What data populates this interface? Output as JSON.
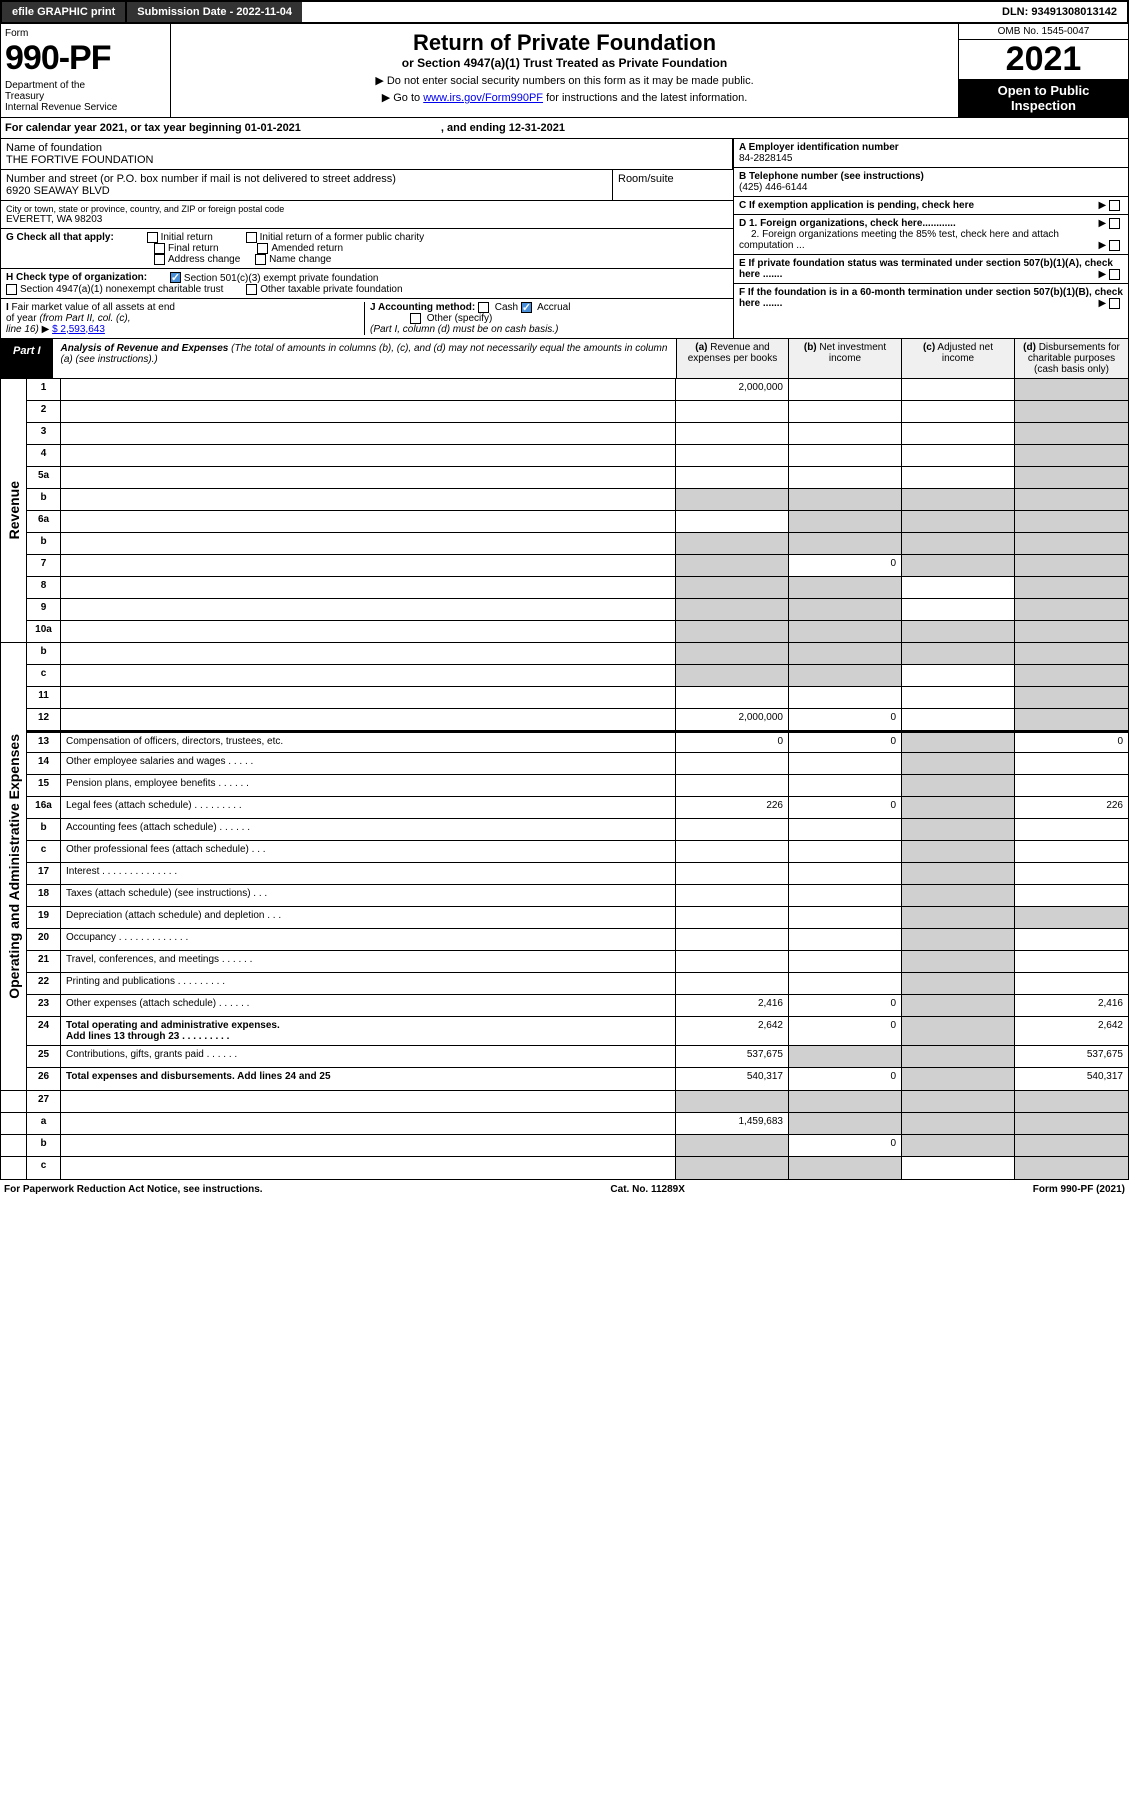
{
  "topbar": {
    "efile": "efile GRAPHIC print",
    "sub_label": "Submission Date - 2022-11-04",
    "dln": "DLN: 93491308013142"
  },
  "header": {
    "form": "Form",
    "num": "990-PF",
    "dept": "Department of the Treasury\nInternal Revenue Service",
    "title": "Return of Private Foundation",
    "subtitle": "or Section 4947(a)(1) Trust Treated as Private Foundation",
    "note1": "▶ Do not enter social security numbers on this form as it may be made public.",
    "note2": "▶ Go to www.irs.gov/Form990PF for instructions and the latest information.",
    "link": "www.irs.gov/Form990PF",
    "omb": "OMB No. 1545-0047",
    "year": "2021",
    "open": "Open to Public Inspection"
  },
  "calyear": {
    "pre": "For calendar year 2021, or tax year beginning 01-01-2021",
    "mid": ", and ending 12-31-2021"
  },
  "info": {
    "name_label": "Name of foundation",
    "name": "THE FORTIVE FOUNDATION",
    "addr_label": "Number and street (or P.O. box number if mail is not delivered to street address)",
    "addr": "6920 SEAWAY BLVD",
    "room_label": "Room/suite",
    "city_label": "City or town, state or province, country, and ZIP or foreign postal code",
    "city": "EVERETT, WA  98203",
    "a_label": "A Employer identification number",
    "a_val": "84-2828145",
    "b_label": "B Telephone number (see instructions)",
    "b_val": "(425) 446-6144",
    "c_label": "C If exemption application is pending, check here",
    "g_label": "G Check all that apply:",
    "g_opts": [
      "Initial return",
      "Initial return of a former public charity",
      "Final return",
      "Amended return",
      "Address change",
      "Name change"
    ],
    "d1": "D 1. Foreign organizations, check here............",
    "d2": "2. Foreign organizations meeting the 85% test, check here and attach computation ...",
    "h_label": "H Check type of organization:",
    "h_opt1": "Section 501(c)(3) exempt private foundation",
    "h_opt2": "Section 4947(a)(1) nonexempt charitable trust",
    "h_opt3": "Other taxable private foundation",
    "e_label": "E  If private foundation status was terminated under section 507(b)(1)(A), check here .......",
    "i_label": "I Fair market value of all assets at end of year (from Part II, col. (c), line 16)",
    "i_val": "$  2,593,643",
    "j_label": "J Accounting method:",
    "j_cash": "Cash",
    "j_accrual": "Accrual",
    "j_other": "Other (specify)",
    "j_note": "(Part I, column (d) must be on cash basis.)",
    "f_label": "F  If the foundation is in a 60-month termination under section 507(b)(1)(B), check here ......."
  },
  "part1": {
    "tab": "Part I",
    "title": "Analysis of Revenue and Expenses",
    "desc": "(The total of amounts in columns (b), (c), and (d) may not necessarily equal the amounts in column (a) (see instructions).)",
    "col_a": "(a)   Revenue and expenses per books",
    "col_b": "(b)  Net investment income",
    "col_c": "(c)  Adjusted net income",
    "col_d": "(d)  Disbursements for charitable purposes (cash basis only)"
  },
  "sections": {
    "revenue": "Revenue",
    "expenses": "Operating and Administrative Expenses"
  },
  "rows": [
    {
      "n": "1",
      "d": "",
      "a": "2,000,000",
      "b": "",
      "c": "",
      "dg": true
    },
    {
      "n": "2",
      "d": "",
      "a": "",
      "b": "",
      "c": "",
      "dg": true
    },
    {
      "n": "3",
      "d": "",
      "a": "",
      "b": "",
      "c": "",
      "dg": true
    },
    {
      "n": "4",
      "d": "",
      "a": "",
      "b": "",
      "c": "",
      "dg": true
    },
    {
      "n": "5a",
      "d": "",
      "a": "",
      "b": "",
      "c": "",
      "dg": true
    },
    {
      "n": "b",
      "d": "",
      "a": "",
      "b": "",
      "c": "",
      "ag": true,
      "bg": true,
      "cg": true,
      "dg": true
    },
    {
      "n": "6a",
      "d": "",
      "a": "",
      "b": "",
      "c": "",
      "bg": true,
      "cg": true,
      "dg": true
    },
    {
      "n": "b",
      "d": "",
      "a": "",
      "b": "",
      "c": "",
      "ag": true,
      "bg": true,
      "cg": true,
      "dg": true
    },
    {
      "n": "7",
      "d": "",
      "a": "",
      "b": "0",
      "c": "",
      "ag": true,
      "cg": true,
      "dg": true
    },
    {
      "n": "8",
      "d": "",
      "a": "",
      "b": "",
      "c": "",
      "ag": true,
      "bg": true,
      "dg": true
    },
    {
      "n": "9",
      "d": "",
      "a": "",
      "b": "",
      "c": "",
      "ag": true,
      "bg": true,
      "dg": true
    },
    {
      "n": "10a",
      "d": "",
      "a": "",
      "b": "",
      "c": "",
      "ag": true,
      "bg": true,
      "cg": true,
      "dg": true
    },
    {
      "n": "b",
      "d": "",
      "a": "",
      "b": "",
      "c": "",
      "ag": true,
      "bg": true,
      "cg": true,
      "dg": true
    },
    {
      "n": "c",
      "d": "",
      "a": "",
      "b": "",
      "c": "",
      "ag": true,
      "bg": true,
      "dg": true
    },
    {
      "n": "11",
      "d": "",
      "a": "",
      "b": "",
      "c": "",
      "dg": true
    },
    {
      "n": "12",
      "d": "",
      "a": "2,000,000",
      "b": "0",
      "c": "",
      "dg": true,
      "bold": true
    }
  ],
  "exp_rows": [
    {
      "n": "13",
      "d": "0",
      "a": "0",
      "b": "0",
      "c": ""
    },
    {
      "n": "14",
      "d": "",
      "a": "",
      "b": "",
      "c": ""
    },
    {
      "n": "15",
      "d": "",
      "a": "",
      "b": "",
      "c": ""
    },
    {
      "n": "16a",
      "d": "226",
      "a": "226",
      "b": "0",
      "c": ""
    },
    {
      "n": "b",
      "d": "",
      "a": "",
      "b": "",
      "c": ""
    },
    {
      "n": "c",
      "d": "",
      "a": "",
      "b": "",
      "c": ""
    },
    {
      "n": "17",
      "d": "",
      "a": "",
      "b": "",
      "c": ""
    },
    {
      "n": "18",
      "d": "",
      "a": "",
      "b": "",
      "c": ""
    },
    {
      "n": "19",
      "d": "",
      "a": "",
      "b": "",
      "c": "",
      "dg": true
    },
    {
      "n": "20",
      "d": "",
      "a": "",
      "b": "",
      "c": ""
    },
    {
      "n": "21",
      "d": "",
      "a": "",
      "b": "",
      "c": ""
    },
    {
      "n": "22",
      "d": "",
      "a": "",
      "b": "",
      "c": ""
    },
    {
      "n": "23",
      "d": "2,416",
      "a": "2,416",
      "b": "0",
      "c": ""
    },
    {
      "n": "24",
      "d": "2,642",
      "a": "2,642",
      "b": "0",
      "c": "",
      "bold": true
    },
    {
      "n": "25",
      "d": "537,675",
      "a": "537,675",
      "b": "",
      "c": "",
      "bg": true
    },
    {
      "n": "26",
      "d": "540,317",
      "a": "540,317",
      "b": "0",
      "c": "",
      "bold": true
    }
  ],
  "bottom_rows": [
    {
      "n": "27",
      "d": "",
      "a": "",
      "b": "",
      "c": "",
      "ag": true,
      "bg": true,
      "cg": true,
      "dg": true
    },
    {
      "n": "a",
      "d": "",
      "a": "1,459,683",
      "b": "",
      "c": "",
      "bg": true,
      "cg": true,
      "dg": true,
      "bold": true
    },
    {
      "n": "b",
      "d": "",
      "a": "",
      "b": "0",
      "c": "",
      "ag": true,
      "cg": true,
      "dg": true,
      "bold": true
    },
    {
      "n": "c",
      "d": "",
      "a": "",
      "b": "",
      "c": "",
      "ag": true,
      "bg": true,
      "dg": true,
      "bold": true
    }
  ],
  "footer": {
    "left": "For Paperwork Reduction Act Notice, see instructions.",
    "mid": "Cat. No. 11289X",
    "right": "Form 990-PF (2021)"
  }
}
